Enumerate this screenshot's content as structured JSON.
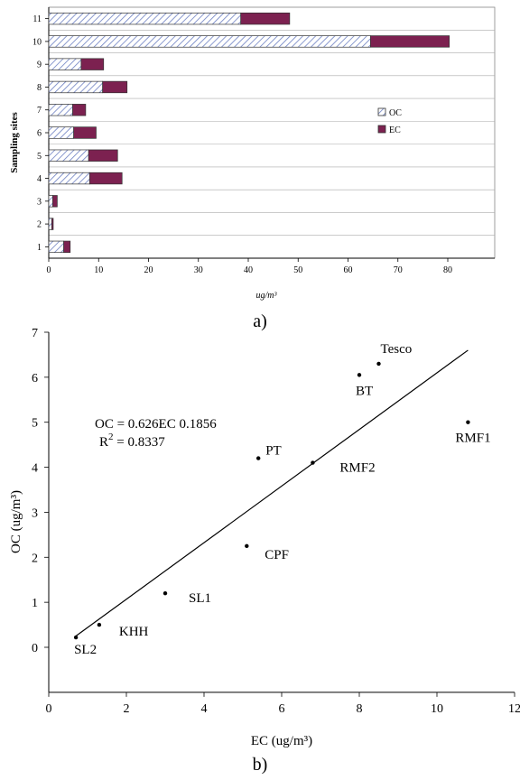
{
  "chart_data": [
    {
      "id": "a",
      "type": "bar",
      "orientation": "horizontal",
      "stacked": true,
      "caption": "a)",
      "ylabel": "Sampling sites",
      "xlabel": "ug/m³",
      "categories": [
        "1",
        "2",
        "3",
        "4",
        "5",
        "6",
        "7",
        "8",
        "9",
        "10",
        "11"
      ],
      "series": [
        {
          "name": "OC",
          "pattern": "hatched",
          "color": "#6c7fc2",
          "values": [
            3,
            0.6,
            0.8,
            8.2,
            8.0,
            5.0,
            4.8,
            10.8,
            6.5,
            64.5,
            38.5
          ]
        },
        {
          "name": "EC",
          "color": "#7c2150",
          "values": [
            1.3,
            0.3,
            0.9,
            6.5,
            5.8,
            4.5,
            2.6,
            4.9,
            4.5,
            15.8,
            9.8
          ]
        }
      ],
      "xlim": [
        0,
        90
      ],
      "xticks": [
        0,
        10,
        20,
        30,
        40,
        50,
        60,
        70,
        80
      ],
      "legend": "right"
    },
    {
      "id": "b",
      "type": "scatter",
      "caption": "b)",
      "xlabel": "EC (ug/m³)",
      "ylabel": "OC (ug/m³)",
      "xlim": [
        0,
        12
      ],
      "ylim": [
        -1,
        7
      ],
      "xticks": [
        0,
        2,
        4,
        6,
        8,
        10,
        12
      ],
      "yticks": [
        0,
        1,
        2,
        3,
        4,
        5,
        6,
        7
      ],
      "points": [
        {
          "label": "Tesco",
          "x": 8.5,
          "y": 6.3
        },
        {
          "label": "BT",
          "x": 8.0,
          "y": 6.05
        },
        {
          "label": "RMF1",
          "x": 10.8,
          "y": 5.0
        },
        {
          "label": "PT",
          "x": 5.4,
          "y": 4.2
        },
        {
          "label": "RMF2",
          "x": 6.8,
          "y": 4.1
        },
        {
          "label": "CPF",
          "x": 5.1,
          "y": 2.25
        },
        {
          "label": "SL1",
          "x": 3.0,
          "y": 1.2
        },
        {
          "label": "KHH",
          "x": 1.3,
          "y": 0.5
        },
        {
          "label": "SL2",
          "x": 0.7,
          "y": 0.22
        }
      ],
      "trendline": {
        "x": [
          0.7,
          10.8
        ],
        "y": [
          0.25,
          6.6
        ]
      },
      "equation": "OC = 0.626EC  0.1856",
      "r2_prefix": "R",
      "r2_exp": "2",
      "r2_value": " = 0.8337"
    }
  ]
}
